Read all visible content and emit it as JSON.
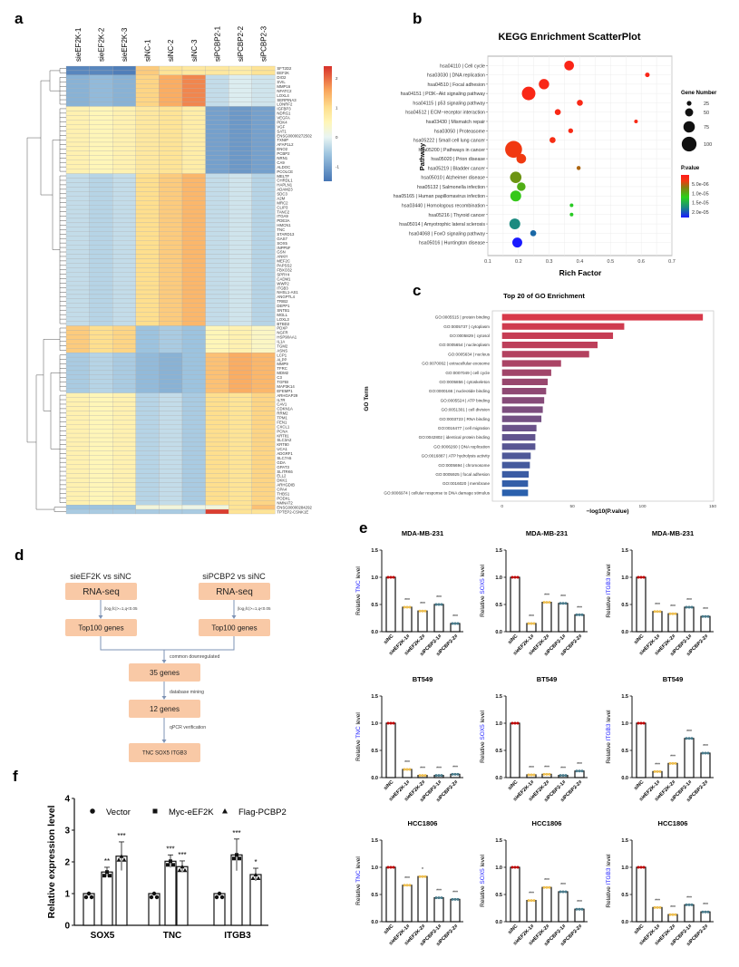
{
  "panel_labels": {
    "a": "a",
    "b": "b",
    "c": "c",
    "d": "d",
    "e": "e",
    "f": "f"
  },
  "colors": {
    "sinc_dot": "#c00000",
    "eef2k_dot": "#f0c050",
    "pcbp2_dot": "#4a7c8c",
    "gene_highlight": "#1a1aff",
    "flow_box": "#f9c9a6",
    "flow_line": "#7e93b5"
  },
  "flowchart": {
    "left_title": "sieEF2K vs siNC",
    "right_title": "siPCBP2 vs siNC",
    "rnaseq": "RNA-seq",
    "filter": "|log₂fc|>=1,q<0.05",
    "top100": "Top100 genes",
    "common": "common downregulated",
    "genes35": "35 genes",
    "mining": "database mining",
    "genes12": "12 genes",
    "qpcr": "qPCR verification",
    "final": "TNC  SOX5  ITGB3"
  },
  "chart_data": [
    {
      "id": "heatmap",
      "type": "heatmap",
      "columns": [
        "sieEF2K-1",
        "sieEF2K-2",
        "sieEF2K-3",
        "siNC-1",
        "siNC-2",
        "siNC-3",
        "siPCBP2-1",
        "siPCBP2-2",
        "siPCBP2-3"
      ],
      "colorbar_ticks": [
        "2",
        "1",
        "0",
        "-1"
      ],
      "colorbar_range": [
        -1.5,
        2.4
      ],
      "blocks": [
        {
          "genes": [
            "SFT2D2",
            "EEF2K"
          ],
          "values": [
            -1.3,
            -1.3,
            -1.4,
            1.2,
            0.9,
            0.8,
            0.8,
            0.7,
            0.9
          ]
        },
        {
          "genes": [
            "DIO2",
            "SVIL",
            "MMP16",
            "NFATC2",
            "LOXL4",
            "SERPINA3",
            "LONRF2"
          ],
          "values": [
            -0.8,
            -0.7,
            -0.8,
            1.1,
            1.5,
            1.8,
            -0.3,
            -0.1,
            -0.2
          ]
        },
        {
          "genes": [
            "IGFBP3",
            "NDRG1",
            "VEGFA",
            "PDK4",
            "VGF",
            "SAT1",
            "ENSG00000272502",
            "TXNIP",
            "AFAP1L2",
            "ENO2",
            "PCBP2",
            "NRN1",
            "CA9",
            "ALDOC",
            "PCOLCE"
          ],
          "values": [
            0.6,
            0.5,
            0.6,
            0.8,
            0.9,
            0.7,
            -1.0,
            -1.1,
            -1.0
          ]
        },
        {
          "genes": [
            "MELTF",
            "CHRDL1",
            "HAPLN1",
            "ADAM23",
            "SDC3",
            "A2M",
            "MRC2",
            "CLIP3",
            "TANC2",
            "ITGA9",
            "PDE3A",
            "HMCN1",
            "TNC",
            "STARD13",
            "GAS7",
            "SOX5",
            "INPP5F",
            "GSN",
            "ANKH",
            "MEF2C",
            "PAPSS2",
            "FBXO32",
            "SPRY4",
            "CADM1",
            "WWP2",
            "ITGB3",
            "NHSL1-AS1",
            "ANGPTL4",
            "TRIB2",
            "DEPP1",
            "SNTB1",
            "MGLL",
            "LOXL3",
            "BTBD2"
          ],
          "values": [
            -0.3,
            -0.4,
            -0.3,
            1.0,
            1.2,
            1.4,
            -0.3,
            -0.2,
            -0.4
          ]
        },
        {
          "genes": [
            "PDXP",
            "NGFR",
            "HSP90AA1",
            "IL1A",
            "TGM2",
            "ASNS"
          ],
          "values": [
            1.2,
            1.0,
            1.1,
            -0.6,
            -0.5,
            -0.6,
            0.5,
            0.6,
            0.4
          ]
        },
        {
          "genes": [
            "LCP1",
            "ALPP",
            "MMP9",
            "TFRC",
            "MDM2",
            "C3",
            "TGFBI",
            "MAP3K14",
            "EFEMP1"
          ],
          "values": [
            -0.5,
            -0.4,
            -0.5,
            -0.7,
            -0.8,
            -0.6,
            1.3,
            1.5,
            1.4
          ]
        },
        {
          "genes": [
            "ARHGAP29",
            "IL7R",
            "CAV1",
            "CDKN1A",
            "RRM2",
            "TPM1",
            "FEN1",
            "CXCL1",
            "PCNA",
            "KRT81",
            "SLC3A2",
            "KRT80",
            "UCA1",
            "ADGRF1",
            "SLC7A5",
            "GDA",
            "GPAT3",
            "SLITRK6",
            "ELL2",
            "DKK1",
            "ARHGDIB",
            "CPA4",
            "THBS1",
            "PODXL",
            "NMNAT2"
          ],
          "values": [
            0.6,
            0.5,
            0.6,
            -0.4,
            -0.3,
            -0.5,
            1.0,
            0.9,
            1.1
          ]
        },
        {
          "genes": [
            "ENSG00000284292"
          ],
          "values": [
            -0.6,
            -0.6,
            -0.6,
            0.2,
            0.2,
            0.1,
            0.2,
            0.9,
            1.3
          ]
        },
        {
          "genes": [
            "TPTEP2-CSNK1E"
          ],
          "values": [
            -0.5,
            -0.5,
            -0.5,
            -0.5,
            -0.5,
            -0.5,
            2.3,
            0.9,
            0.9
          ]
        }
      ]
    },
    {
      "id": "kegg",
      "type": "scatter",
      "title": "KEGG Enrichment ScatterPlot",
      "xlabel": "Rich Factor",
      "ylabel": "Pathway",
      "xlim": [
        0.1,
        0.7
      ],
      "xticks": [
        "0.1",
        "0.2",
        "0.3",
        "0.4",
        "0.5",
        "0.6",
        "0.7"
      ],
      "grid": true,
      "size_legend_title": "Gene Number",
      "size_legend": [
        25,
        50,
        75,
        100
      ],
      "color_legend_title": "P.value",
      "color_legend": [
        "5.0e-06",
        "1.0e-05",
        "1.5e-05",
        "2.0e-05"
      ],
      "points": [
        {
          "label": "hsa04110 | Cell cycle",
          "x": 0.365,
          "count": 62,
          "p": 1e-06
        },
        {
          "label": "hsa03030 | DNA replication",
          "x": 0.62,
          "count": 24,
          "p": 1e-06
        },
        {
          "label": "hsa04510 | Focal adhesion",
          "x": 0.283,
          "count": 67,
          "p": 1.2e-06
        },
        {
          "label": "hsa04151 | PI3K−Akt signaling pathway",
          "x": 0.233,
          "count": 91,
          "p": 1.2e-06
        },
        {
          "label": "hsa04115 | p53 signaling pathway",
          "x": 0.4,
          "count": 35,
          "p": 1.3e-06
        },
        {
          "label": "hsa04512 | ECM−receptor interaction",
          "x": 0.328,
          "count": 35,
          "p": 1.3e-06
        },
        {
          "label": "hsa03430 | Mismatch repair",
          "x": 0.583,
          "count": 17,
          "p": 1.4e-06
        },
        {
          "label": "hsa03050 | Proteasome",
          "x": 0.37,
          "count": 26,
          "p": 1.5e-06
        },
        {
          "label": "hsa05222 | Small cell lung cancer",
          "x": 0.311,
          "count": 35,
          "p": 1.8e-06
        },
        {
          "label": "hsa05200 | Pathways in cancer",
          "x": 0.184,
          "count": 116,
          "p": 2.8e-06
        },
        {
          "label": "hsa05020 | Prion disease",
          "x": 0.209,
          "count": 62,
          "p": 3e-06
        },
        {
          "label": "hsa05219 | Bladder cancer",
          "x": 0.396,
          "count": 20,
          "p": 5e-06
        },
        {
          "label": "hsa05010 | Alzheimer disease",
          "x": 0.191,
          "count": 75,
          "p": 7.5e-06
        },
        {
          "label": "hsa05132 | Salmonella infection",
          "x": 0.209,
          "count": 54,
          "p": 9e-06
        },
        {
          "label": "hsa05165 | Human papillomavirus infection",
          "x": 0.191,
          "count": 71,
          "p": 1.05e-05
        },
        {
          "label": "hsa03440 | Homologous recombination",
          "x": 0.373,
          "count": 17,
          "p": 1.15e-05
        },
        {
          "label": "hsa05216 | Thyroid cancer",
          "x": 0.373,
          "count": 17,
          "p": 1.15e-05
        },
        {
          "label": "hsa05014 | Amyotrophic lateral sclerosis",
          "x": 0.188,
          "count": 71,
          "p": 1.6e-05
        },
        {
          "label": "hsa04068 | FoxO signaling pathway",
          "x": 0.248,
          "count": 35,
          "p": 1.75e-05
        },
        {
          "label": "hsa05016 | Huntington disease",
          "x": 0.196,
          "count": 64,
          "p": 2.1e-05
        }
      ]
    },
    {
      "id": "go",
      "type": "bar",
      "orientation": "horizontal",
      "title": "Top 20 of GO Enrichment",
      "xlabel": "−log10(P.value)",
      "ylabel": "GO Term",
      "xlim": [
        0,
        150
      ],
      "xticks": [
        "0",
        "50",
        "100",
        "150"
      ],
      "color_range": [
        "#d8394a",
        "#2a60ad"
      ],
      "categories": [
        "GO:0005515 | protein binding",
        "GO:0005737 | cytoplasm",
        "GO:0005829 | cytosol",
        "GO:0005654 | nucleoplasm",
        "GO:0005634 | nucleus",
        "GO:0070062 | extracellular exosome",
        "GO:0007049 | cell cycle",
        "GO:0005856 | cytoskeleton",
        "GO:0000166 | nucleotide binding",
        "GO:0005524 | ATP binding",
        "GO:0051301 | cell division",
        "GO:0003723 | RNA binding",
        "GO:0016477 | cell migration",
        "GO:0042802 | identical protein binding",
        "GO:0006260 | DNA replication",
        "GO:0016887 | ATP hydrolysis activity",
        "GO:0005694 | chromosome",
        "GO:0005925 | focal adhesion",
        "GO:0016020 | membrane",
        "GO:0006974 | cellular response to DNA damage stimulus"
      ],
      "values": [
        143,
        87,
        79,
        68,
        62,
        42,
        35,
        32.5,
        31.4,
        30,
        29,
        28,
        24.5,
        23.7,
        23.7,
        20.4,
        19.8,
        19,
        18.5,
        18.5
      ]
    },
    {
      "id": "qpcr_panels",
      "type": "bar",
      "categories": [
        "siNC",
        "sieEF2K-1#",
        "sieEF2K-2#",
        "siPCBP2-1#",
        "siPCBP2-2#"
      ],
      "ylim": [
        0,
        1.5
      ],
      "yticks": [
        "0.0",
        "0.5",
        "1.0",
        "1.5"
      ],
      "ylabel_prefix": "Relative ",
      "ylabel_suffix": " level",
      "panels": [
        {
          "title": "MDA-MB-231",
          "gene": "TNC",
          "values": [
            1,
            0.45,
            0.38,
            0.5,
            0.15
          ],
          "sig": [
            "",
            "***",
            "***",
            "***",
            "***"
          ]
        },
        {
          "title": "MDA-MB-231",
          "gene": "SOX5",
          "values": [
            1,
            0.15,
            0.54,
            0.52,
            0.31
          ],
          "sig": [
            "",
            "***",
            "***",
            "***",
            "***"
          ]
        },
        {
          "title": "MDA-MB-231",
          "gene": "ITGB3",
          "values": [
            1,
            0.37,
            0.33,
            0.45,
            0.28
          ],
          "sig": [
            "",
            "***",
            "***",
            "***",
            "***"
          ]
        },
        {
          "title": "BT549",
          "gene": "TNC",
          "values": [
            1,
            0.15,
            0.04,
            0.04,
            0.06
          ],
          "sig": [
            "",
            "***",
            "***",
            "***",
            "***"
          ]
        },
        {
          "title": "BT549",
          "gene": "SOX5",
          "values": [
            1,
            0.05,
            0.06,
            0.04,
            0.12
          ],
          "sig": [
            "",
            "***",
            "***",
            "***",
            "***"
          ]
        },
        {
          "title": "BT549",
          "gene": "ITGB3",
          "values": [
            1,
            0.11,
            0.26,
            0.72,
            0.45
          ],
          "sig": [
            "",
            "***",
            "***",
            "***",
            "***"
          ]
        },
        {
          "title": "HCC1806",
          "gene": "TNC",
          "values": [
            1,
            0.67,
            0.83,
            0.44,
            0.41
          ],
          "sig": [
            "",
            "***",
            "*",
            "***",
            "***"
          ]
        },
        {
          "title": "HCC1806",
          "gene": "SOX5",
          "values": [
            1,
            0.39,
            0.63,
            0.55,
            0.23
          ],
          "sig": [
            "",
            "***",
            "***",
            "***",
            "***"
          ]
        },
        {
          "title": "HCC1806",
          "gene": "ITGB3",
          "values": [
            1,
            0.26,
            0.13,
            0.31,
            0.18
          ],
          "sig": [
            "",
            "***",
            "***",
            "***",
            "***"
          ]
        }
      ]
    },
    {
      "id": "overexpression",
      "type": "bar",
      "ylabel": "Relative expression level",
      "ylim": [
        0,
        4
      ],
      "yticks": [
        "0",
        "1",
        "2",
        "3",
        "4"
      ],
      "categories": [
        "SOX5",
        "TNC",
        "ITGB3"
      ],
      "series": [
        {
          "name": "Vector",
          "marker": "circle",
          "values": [
            1,
            1,
            1
          ],
          "sd": [
            0,
            0,
            0
          ],
          "sig": [
            "",
            "",
            ""
          ]
        },
        {
          "name": "Myc-eEF2K",
          "marker": "square",
          "values": [
            1.68,
            2.02,
            2.22
          ],
          "sd": [
            0.15,
            0.2,
            0.5
          ],
          "sig": [
            "**",
            "***",
            "***"
          ]
        },
        {
          "name": "Flag-PCBP2",
          "marker": "triangle",
          "values": [
            2.18,
            1.85,
            1.6
          ],
          "sd": [
            0.45,
            0.18,
            0.2
          ],
          "sig": [
            "***",
            "***",
            "*"
          ]
        }
      ]
    }
  ]
}
